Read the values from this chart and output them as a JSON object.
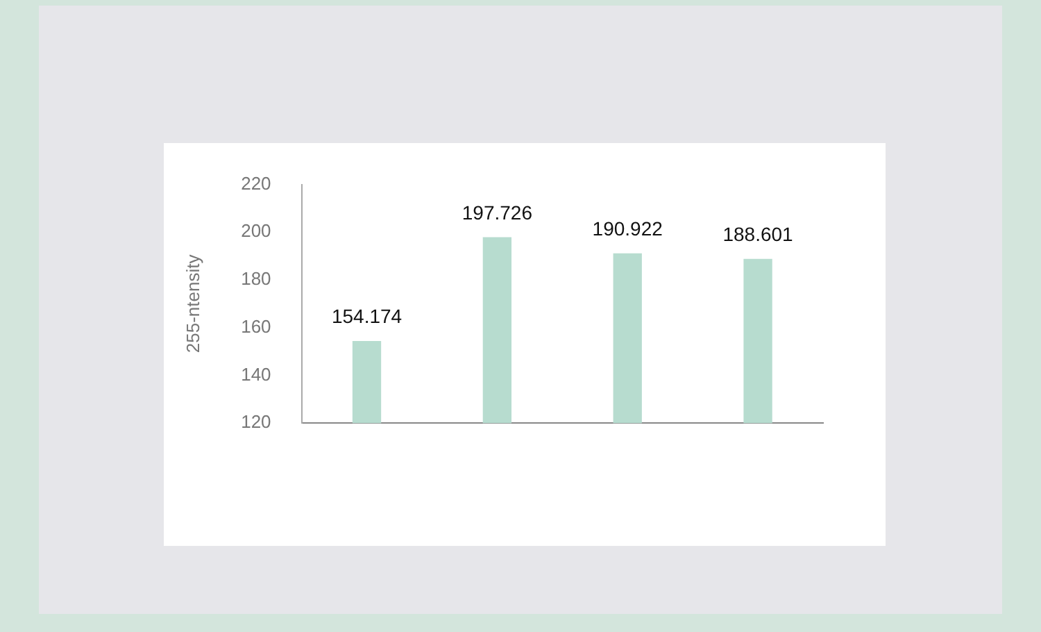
{
  "chart_data": {
    "type": "bar",
    "ylabel": "255-ntensity",
    "categories": [
      null,
      null,
      null,
      null
    ],
    "values": [
      154.174,
      197.726,
      190.922,
      188.601
    ],
    "color": "#b7dccf",
    "ylim": [
      120,
      220
    ],
    "yticks": [
      120,
      140,
      160,
      180,
      200,
      220
    ],
    "grid": false,
    "data_labels": true
  }
}
